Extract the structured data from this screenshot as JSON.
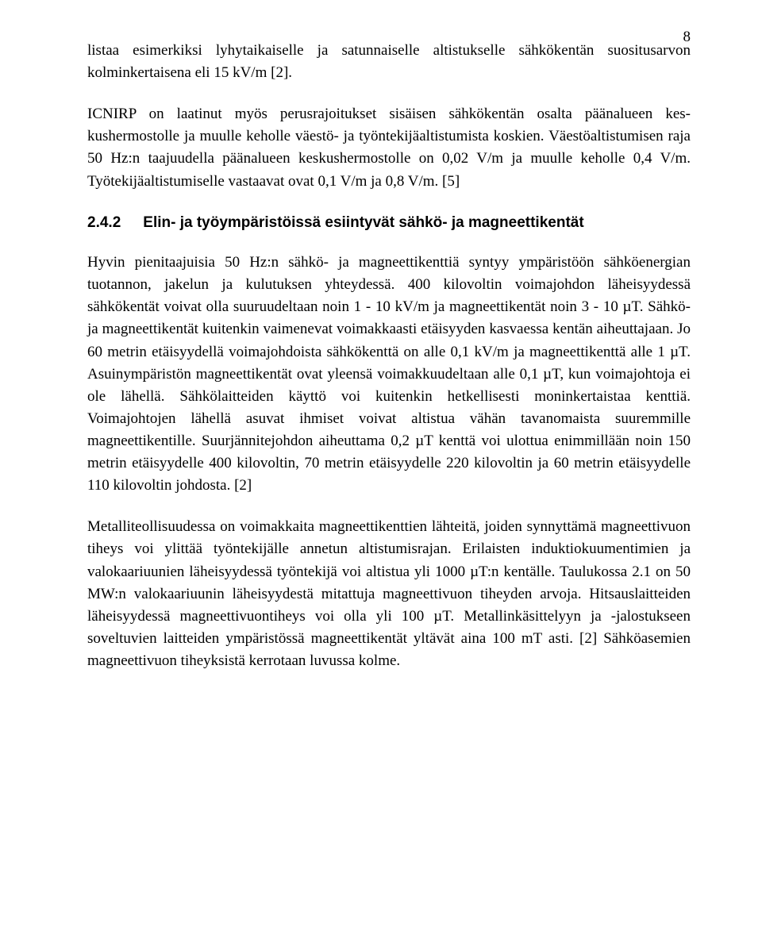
{
  "page_number": "8",
  "paragraphs": {
    "p1": "listaa esimerkiksi lyhytaikaiselle ja satunnaiselle altistukselle sähkökentän suositusar­von kolminkertaisena eli 15 kV/m [2].",
    "p2": "ICNIRP on laatinut myös perusrajoitukset sisäisen sähkökentän osalta päänalueen kes­kushermostolle ja muulle keholle väestö- ja työntekijäaltistumista koskien. Väestöaltis­tumisen raja 50 Hz:n taajuudella päänalueen keskushermostolle on 0,02 V/m ja muulle keholle 0,4 V/m. Työtekijäaltistumiselle vastaavat ovat 0,1 V/m ja 0,8 V/m. [5]",
    "p3": "Hyvin pienitaajuisia 50 Hz:n sähkö- ja magneettikenttiä syntyy ympäristöön sähköener­gian tuotannon, jakelun ja kulutuksen yhteydessä. 400 kilovoltin voimajohdon läheisyy­dessä sähkökentät voivat olla suuruudeltaan noin 1 - 10 kV/m ja magneettikentät noin 3 - 10 µT. Sähkö- ja magneettikentät kuitenkin vaimenevat voimakkaasti etäisyyden kas­vaessa kentän aiheuttajaan. Jo 60 metrin etäisyydellä voimajohdoista sähkökenttä on alle 0,1 kV/m ja magneettikenttä alle 1 µT. Asuinympäristön magneettikentät ovat yleensä voimakkuudeltaan alle 0,1 µT, kun voimajohtoja ei ole lähellä. Sähkölaitteiden käyttö voi kuitenkin hetkellisesti moninkertaistaa kenttiä. Voimajohtojen lähellä asuvat ihmiset voivat altistua vähän tavanomaista suuremmille magneettikentille. Suurjännite­johdon aiheuttama 0,2 µT kenttä voi ulottua enimmillään noin 150 metrin etäisyydelle 400 kilovoltin, 70 metrin etäisyydelle 220 kilovoltin ja 60 metrin etäisyydelle 110 kilo­voltin johdosta. [2]",
    "p4": "Metalliteollisuudessa on voimakkaita magneettikenttien lähteitä, joiden synnyttämä magneettivuon tiheys voi ylittää työntekijälle annetun altistumisrajan. Erilaisten induk­tiokuumentimien ja valokaariuunien läheisyydessä työntekijä voi altistua yli 1000 µT:n kentälle. Taulukossa 2.1 on 50 MW:n valokaariuunin läheisyydestä mitattuja magneet­tivuon tiheyden arvoja. Hitsauslaitteiden läheisyydessä magneettivuontiheys voi olla yli 100 µT. Metallinkäsittelyyn ja -jalostukseen soveltuvien laitteiden ympäristössä mag­neettikentät yltävät aina 100 mT asti. [2] Sähköasemien magneettivuon tiheyksistä ker­rotaan luvussa kolme."
  },
  "section": {
    "number": "2.4.2",
    "title": "Elin- ja työympäristöissä esiintyvät sähkö- ja magneettikentät"
  }
}
